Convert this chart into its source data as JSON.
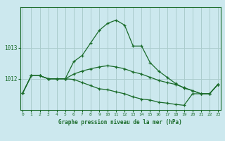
{
  "title": "Graphe pression niveau de la mer (hPa)",
  "background_color": "#cce8ee",
  "grid_color": "#aacccc",
  "line_color": "#1a6b2a",
  "border_color": "#1a6b2a",
  "x_labels": [
    "0",
    "1",
    "2",
    "3",
    "4",
    "5",
    "6",
    "7",
    "8",
    "9",
    "10",
    "11",
    "12",
    "13",
    "14",
    "15",
    "16",
    "17",
    "18",
    "19",
    "20",
    "21",
    "22",
    "23"
  ],
  "hours": [
    0,
    1,
    2,
    3,
    4,
    5,
    6,
    7,
    8,
    9,
    10,
    11,
    12,
    13,
    14,
    15,
    16,
    17,
    18,
    19,
    20,
    21,
    22,
    23
  ],
  "line1": [
    1011.55,
    1012.1,
    1012.1,
    1012.0,
    1012.0,
    1012.0,
    1012.55,
    1012.75,
    1013.15,
    1013.55,
    1013.78,
    1013.88,
    1013.72,
    1013.05,
    1013.05,
    1012.52,
    1012.25,
    1012.05,
    1011.85,
    1011.7,
    1011.62,
    1011.52,
    1011.52,
    1011.82
  ],
  "line2": [
    1011.55,
    1012.1,
    1012.1,
    1012.0,
    1012.0,
    1012.0,
    1011.98,
    1011.88,
    1011.78,
    1011.68,
    1011.65,
    1011.58,
    1011.52,
    1011.42,
    1011.35,
    1011.32,
    1011.25,
    1011.22,
    1011.18,
    1011.15,
    1011.52,
    1011.52,
    1011.52,
    1011.82
  ],
  "line3": [
    1011.55,
    1012.1,
    1012.1,
    1012.0,
    1012.0,
    1012.0,
    1012.15,
    1012.25,
    1012.32,
    1012.38,
    1012.42,
    1012.38,
    1012.32,
    1012.22,
    1012.15,
    1012.05,
    1011.95,
    1011.88,
    1011.82,
    1011.72,
    1011.62,
    1011.52,
    1011.52,
    1011.82
  ],
  "yticks": [
    1012,
    1013
  ],
  "ylim": [
    1011.0,
    1014.3
  ],
  "xlim": [
    -0.3,
    23.3
  ],
  "figwidth": 3.2,
  "figheight": 2.0,
  "dpi": 100
}
